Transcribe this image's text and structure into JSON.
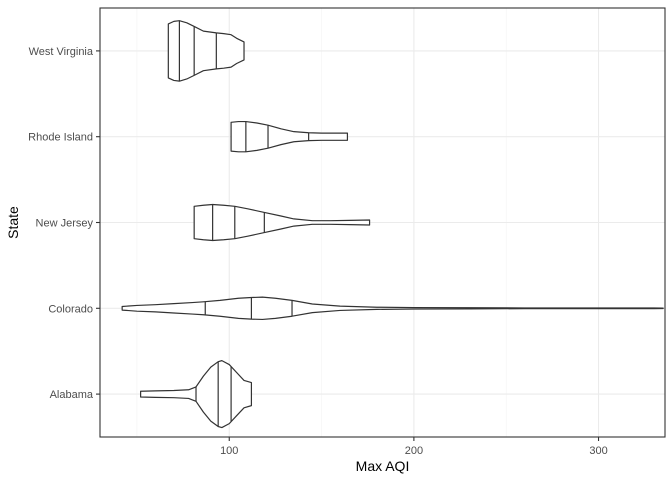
{
  "chart_data": {
    "type": "violin",
    "orientation": "horizontal",
    "xlabel": "Max AQI",
    "ylabel": "State",
    "xlim": [
      30,
      336
    ],
    "x_ticks": [
      100,
      200,
      300
    ],
    "x_minor_ticks": [
      50,
      150,
      250
    ],
    "categories": [
      "Alabama",
      "Colorado",
      "New Jersey",
      "Rhode Island",
      "West Virginia"
    ],
    "grid": true,
    "violins": [
      {
        "category": "Alabama",
        "min": 52,
        "max": 112,
        "quantiles": [
          82,
          94,
          101
        ],
        "profile": [
          [
            52,
            0.08
          ],
          [
            60,
            0.09
          ],
          [
            70,
            0.1
          ],
          [
            78,
            0.12
          ],
          [
            82,
            0.2
          ],
          [
            86,
            0.5
          ],
          [
            90,
            0.75
          ],
          [
            94,
            0.9
          ],
          [
            96,
            0.93
          ],
          [
            100,
            0.82
          ],
          [
            104,
            0.6
          ],
          [
            108,
            0.38
          ],
          [
            112,
            0.32
          ]
        ]
      },
      {
        "category": "Colorado",
        "min": 42,
        "max": 335,
        "quantiles": [
          87,
          112,
          134
        ],
        "profile": [
          [
            42,
            0.05
          ],
          [
            50,
            0.08
          ],
          [
            60,
            0.1
          ],
          [
            70,
            0.13
          ],
          [
            80,
            0.16
          ],
          [
            86,
            0.18
          ],
          [
            95,
            0.22
          ],
          [
            105,
            0.28
          ],
          [
            112,
            0.3
          ],
          [
            118,
            0.31
          ],
          [
            125,
            0.28
          ],
          [
            134,
            0.22
          ],
          [
            145,
            0.12
          ],
          [
            160,
            0.06
          ],
          [
            180,
            0.03
          ],
          [
            200,
            0.02
          ],
          [
            230,
            0.015
          ],
          [
            260,
            0.01
          ],
          [
            300,
            0.01
          ],
          [
            330,
            0.01
          ],
          [
            335,
            0.005
          ]
        ]
      },
      {
        "category": "New Jersey",
        "min": 81,
        "max": 176,
        "quantiles": [
          91,
          103,
          119
        ],
        "profile": [
          [
            81,
            0.45
          ],
          [
            86,
            0.48
          ],
          [
            91,
            0.5
          ],
          [
            97,
            0.48
          ],
          [
            103,
            0.45
          ],
          [
            110,
            0.38
          ],
          [
            119,
            0.28
          ],
          [
            128,
            0.18
          ],
          [
            135,
            0.1
          ],
          [
            145,
            0.05
          ],
          [
            155,
            0.05
          ],
          [
            165,
            0.06
          ],
          [
            176,
            0.07
          ]
        ]
      },
      {
        "category": "Rhode Island",
        "min": 101,
        "max": 164,
        "quantiles": [
          109,
          121,
          143
        ],
        "profile": [
          [
            101,
            0.4
          ],
          [
            105,
            0.42
          ],
          [
            109,
            0.42
          ],
          [
            115,
            0.38
          ],
          [
            121,
            0.32
          ],
          [
            128,
            0.22
          ],
          [
            135,
            0.14
          ],
          [
            143,
            0.11
          ],
          [
            150,
            0.1
          ],
          [
            157,
            0.1
          ],
          [
            164,
            0.1
          ]
        ]
      },
      {
        "category": "West Virginia",
        "min": 67,
        "max": 108,
        "quantiles": [
          73,
          81,
          93
        ],
        "profile": [
          [
            67,
            0.75
          ],
          [
            70,
            0.82
          ],
          [
            73,
            0.84
          ],
          [
            77,
            0.78
          ],
          [
            81,
            0.68
          ],
          [
            86,
            0.55
          ],
          [
            93,
            0.5
          ],
          [
            97,
            0.48
          ],
          [
            101,
            0.45
          ],
          [
            104,
            0.35
          ],
          [
            108,
            0.25
          ]
        ]
      }
    ]
  }
}
